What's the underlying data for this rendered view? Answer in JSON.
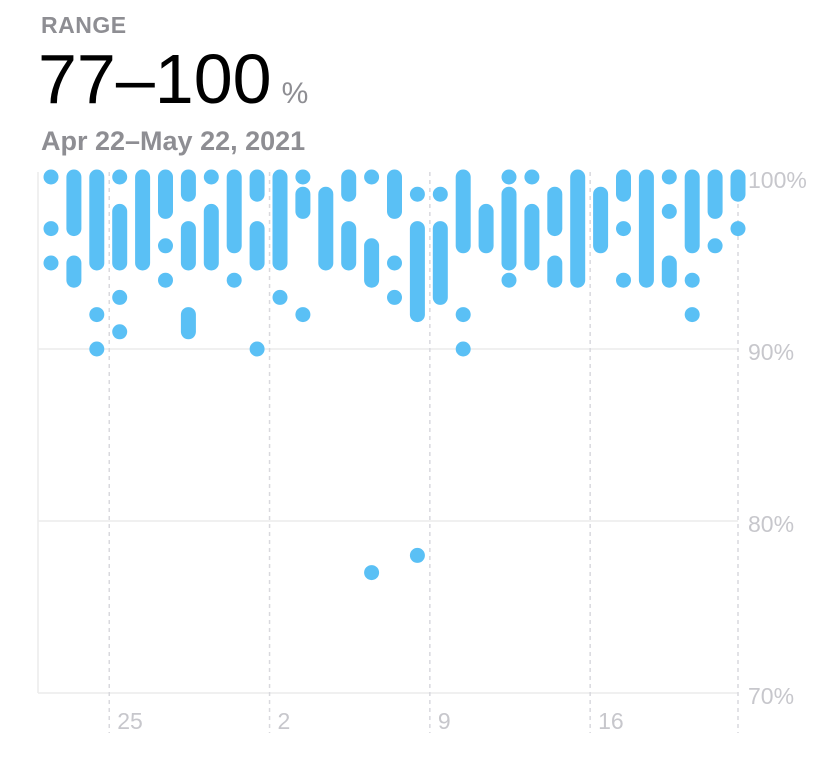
{
  "header": {
    "range_label": "RANGE",
    "range_value": "77–100",
    "range_unit": "%",
    "date_range": "Apr 22–May 22, 2021"
  },
  "colors": {
    "bar": "#5ac0f5",
    "grid": "#ececec",
    "dashed": "#d9d9de",
    "tick_text": "#c7c7cc"
  },
  "chart_data": {
    "type": "range-bar",
    "ylim": [
      70,
      100
    ],
    "y_ticks": [
      {
        "value": 100,
        "label": "100%"
      },
      {
        "value": 90,
        "label": "90%"
      },
      {
        "value": 80,
        "label": "80%"
      },
      {
        "value": 70,
        "label": "70%"
      }
    ],
    "x_ticks": [
      {
        "date": "Apr 25",
        "label": "25"
      },
      {
        "date": "May 2",
        "label": "2"
      },
      {
        "date": "May 9",
        "label": "9"
      },
      {
        "date": "May 16",
        "label": "16"
      }
    ],
    "days": [
      {
        "date": "Apr 22",
        "ranges": [
          [
            100,
            100
          ],
          [
            97,
            97
          ],
          [
            95,
            95
          ]
        ]
      },
      {
        "date": "Apr 23",
        "ranges": [
          [
            100,
            97
          ],
          [
            95,
            94
          ]
        ]
      },
      {
        "date": "Apr 24",
        "ranges": [
          [
            100,
            95
          ],
          [
            92,
            92
          ],
          [
            90,
            90
          ]
        ]
      },
      {
        "date": "Apr 25",
        "ranges": [
          [
            100,
            100
          ],
          [
            98,
            95
          ],
          [
            93,
            93
          ],
          [
            91,
            91
          ]
        ]
      },
      {
        "date": "Apr 26",
        "ranges": [
          [
            100,
            95
          ]
        ]
      },
      {
        "date": "Apr 27",
        "ranges": [
          [
            100,
            98
          ],
          [
            96,
            96
          ],
          [
            94,
            94
          ]
        ]
      },
      {
        "date": "Apr 28",
        "ranges": [
          [
            100,
            99
          ],
          [
            97,
            95
          ],
          [
            92,
            91
          ]
        ]
      },
      {
        "date": "Apr 29",
        "ranges": [
          [
            100,
            100
          ],
          [
            98,
            95
          ]
        ]
      },
      {
        "date": "Apr 30",
        "ranges": [
          [
            100,
            96
          ],
          [
            94,
            94
          ]
        ]
      },
      {
        "date": "May 1",
        "ranges": [
          [
            100,
            99
          ],
          [
            97,
            95
          ],
          [
            90,
            90
          ]
        ]
      },
      {
        "date": "May 2",
        "ranges": [
          [
            100,
            95
          ],
          [
            93,
            93
          ]
        ]
      },
      {
        "date": "May 3",
        "ranges": [
          [
            100,
            100
          ],
          [
            99,
            98
          ],
          [
            92,
            92
          ]
        ]
      },
      {
        "date": "May 4",
        "ranges": [
          [
            99,
            95
          ]
        ]
      },
      {
        "date": "May 5",
        "ranges": [
          [
            100,
            99
          ],
          [
            97,
            95
          ]
        ]
      },
      {
        "date": "May 6",
        "ranges": [
          [
            100,
            100
          ],
          [
            96,
            94
          ],
          [
            77,
            77
          ]
        ]
      },
      {
        "date": "May 7",
        "ranges": [
          [
            100,
            98
          ],
          [
            95,
            95
          ],
          [
            93,
            93
          ]
        ]
      },
      {
        "date": "May 8",
        "ranges": [
          [
            99,
            99
          ],
          [
            97,
            92
          ],
          [
            78,
            78
          ]
        ]
      },
      {
        "date": "May 9",
        "ranges": [
          [
            99,
            99
          ],
          [
            97,
            93
          ]
        ]
      },
      {
        "date": "May 10",
        "ranges": [
          [
            100,
            96
          ],
          [
            92,
            92
          ],
          [
            90,
            90
          ]
        ]
      },
      {
        "date": "May 11",
        "ranges": [
          [
            98,
            96
          ]
        ]
      },
      {
        "date": "May 12",
        "ranges": [
          [
            100,
            100
          ],
          [
            99,
            95
          ],
          [
            94,
            94
          ]
        ]
      },
      {
        "date": "May 13",
        "ranges": [
          [
            100,
            100
          ],
          [
            98,
            95
          ]
        ]
      },
      {
        "date": "May 14",
        "ranges": [
          [
            99,
            97
          ],
          [
            95,
            94
          ]
        ]
      },
      {
        "date": "May 15",
        "ranges": [
          [
            100,
            94
          ]
        ]
      },
      {
        "date": "May 16",
        "ranges": [
          [
            99,
            96
          ]
        ]
      },
      {
        "date": "May 17",
        "ranges": [
          [
            100,
            99
          ],
          [
            97,
            97
          ],
          [
            94,
            94
          ]
        ]
      },
      {
        "date": "May 18",
        "ranges": [
          [
            100,
            94
          ]
        ]
      },
      {
        "date": "May 19",
        "ranges": [
          [
            100,
            100
          ],
          [
            98,
            98
          ],
          [
            95,
            94
          ]
        ]
      },
      {
        "date": "May 20",
        "ranges": [
          [
            100,
            96
          ],
          [
            94,
            94
          ],
          [
            92,
            92
          ]
        ]
      },
      {
        "date": "May 21",
        "ranges": [
          [
            100,
            98
          ],
          [
            96,
            96
          ]
        ]
      },
      {
        "date": "May 22",
        "ranges": [
          [
            100,
            99
          ],
          [
            97,
            97
          ]
        ]
      }
    ]
  }
}
